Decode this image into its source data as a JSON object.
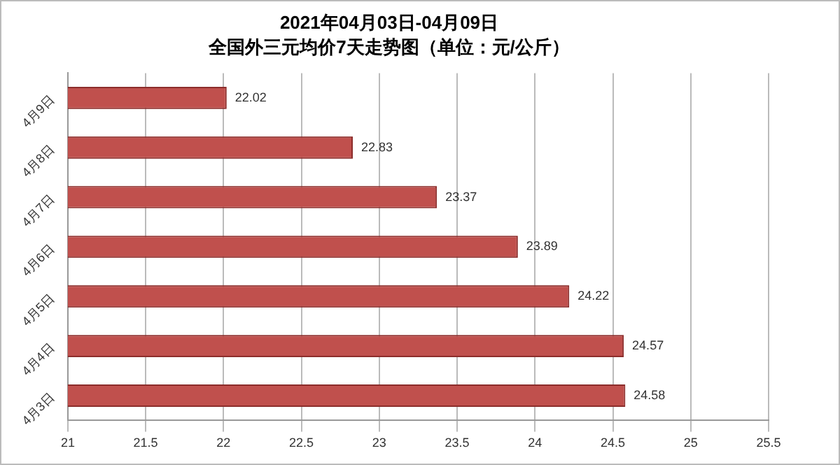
{
  "chart_data": {
    "type": "bar",
    "orientation": "horizontal",
    "title": "2021年04月03日-04月09日",
    "subtitle": "全国外三元均价7天走势图（单位：元/公斤）",
    "categories": [
      "4月9日",
      "4月8日",
      "4月7日",
      "4月6日",
      "4月5日",
      "4月4日",
      "4月3日"
    ],
    "values": [
      22.02,
      22.83,
      23.37,
      23.89,
      24.22,
      24.57,
      24.58
    ],
    "color": "#c0504d",
    "xlim": [
      21,
      25.5
    ],
    "xticks": [
      21,
      21.5,
      22,
      22.5,
      23,
      23.5,
      24,
      24.5,
      25,
      25.5
    ],
    "grid": "x",
    "data_labels": true,
    "legend": false
  }
}
